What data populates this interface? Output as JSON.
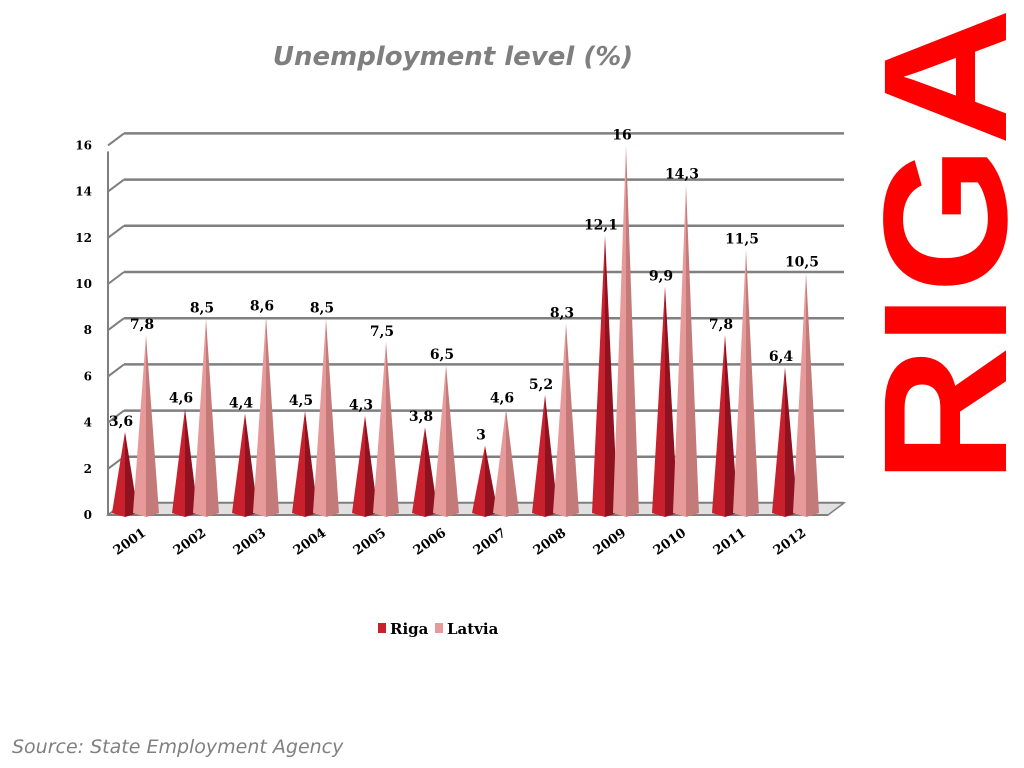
{
  "slide": {
    "logo_text": "RIGA",
    "source": "Source: State Employment Agency"
  },
  "colors": {
    "riga": "#c8202c",
    "latvia": "#e89a9a",
    "logo": "#ff0000",
    "grid": "#7f7f7f",
    "title": "#7f7f7f"
  },
  "chart_data": {
    "type": "bar",
    "style": "3d-cone",
    "title": "Unemployment level (%)",
    "xlabel": "",
    "ylabel": "",
    "ylim": [
      0,
      16
    ],
    "yticks": [
      "0",
      "2",
      "4",
      "6",
      "8",
      "10",
      "12",
      "14",
      "16"
    ],
    "grid": true,
    "legend": "bottom",
    "categories": [
      "2001",
      "2002",
      "2003",
      "2004",
      "2005",
      "2006",
      "2007",
      "2008",
      "2009",
      "2010",
      "2011",
      "2012"
    ],
    "series": [
      {
        "name": "Riga",
        "values": [
          3.6,
          4.6,
          4.4,
          4.5,
          4.3,
          3.8,
          3,
          5.2,
          12.1,
          9.9,
          7.8,
          6.4
        ],
        "labels": [
          "3,6",
          "4,6",
          "4,4",
          "4,5",
          "4,3",
          "3,8",
          "3",
          "5,2",
          "12,1",
          "9,9",
          "7,8",
          "6,4"
        ]
      },
      {
        "name": "Latvia",
        "values": [
          7.8,
          8.5,
          8.6,
          8.5,
          7.5,
          6.5,
          4.6,
          8.3,
          16,
          14.3,
          11.5,
          10.5
        ],
        "labels": [
          "7,8",
          "8,5",
          "8,6",
          "8,5",
          "7,5",
          "6,5",
          "4,6",
          "8,3",
          "16",
          "14,3",
          "11,5",
          "10,5"
        ]
      }
    ]
  }
}
